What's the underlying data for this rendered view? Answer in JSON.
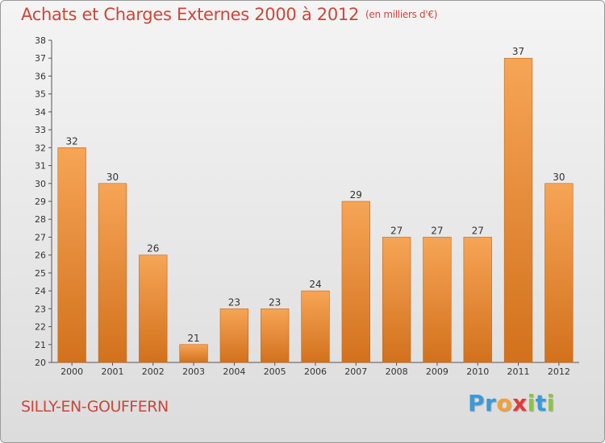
{
  "title": "Achats et Charges Externes 2000 à 2012",
  "unit": "(en milliers d'€)",
  "location": "SILLY-EN-GOUFFERN",
  "brand": {
    "letters": [
      "P",
      "r",
      "o",
      "x",
      "i",
      "t",
      "i"
    ],
    "colors": [
      "#3a9ad9",
      "#3a9ad9",
      "#f0a23a",
      "#e23a3a",
      "#8cc63f",
      "#3a9ad9",
      "#8cc63f"
    ]
  },
  "chart_data": {
    "type": "bar",
    "title": "Achats et Charges Externes 2000 à 2012",
    "categories": [
      "2000",
      "2001",
      "2002",
      "2003",
      "2004",
      "2005",
      "2006",
      "2007",
      "2008",
      "2009",
      "2010",
      "2011",
      "2012"
    ],
    "values": [
      32,
      30,
      26,
      21,
      23,
      23,
      24,
      29,
      27,
      27,
      27,
      37,
      30
    ],
    "ylim": [
      20,
      38
    ],
    "yticks": [
      20,
      21,
      22,
      23,
      24,
      25,
      26,
      27,
      28,
      29,
      30,
      31,
      32,
      33,
      34,
      35,
      36,
      37,
      38
    ],
    "grid": false,
    "bar_color_top": "#f6a556",
    "bar_color_bottom": "#d2711c",
    "bar_edge": "#c2661a"
  }
}
